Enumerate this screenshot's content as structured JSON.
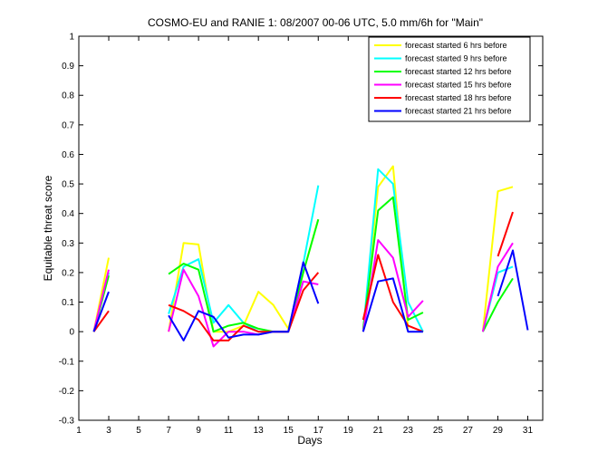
{
  "chart_data": {
    "type": "line",
    "title": "COSMO-EU and RANIE 1: 08/2007 00-06 UTC, 5.0 mm/6h for \"Main\"",
    "xlabel": "Days",
    "ylabel": "Equitable threat score",
    "xlim": [
      1,
      32
    ],
    "ylim": [
      -0.3,
      1
    ],
    "xticks": [
      1,
      3,
      5,
      7,
      9,
      11,
      13,
      15,
      17,
      19,
      21,
      23,
      25,
      27,
      29,
      31
    ],
    "yticks": [
      -0.3,
      -0.2,
      -0.1,
      0,
      0.1,
      0.2,
      0.3,
      0.4,
      0.5,
      0.6,
      0.7,
      0.8,
      0.9,
      1
    ],
    "xtick_labels": [
      "1",
      "3",
      "5",
      "7",
      "9",
      "11",
      "13",
      "15",
      "17",
      "19",
      "21",
      "23",
      "25",
      "27",
      "29",
      "31"
    ],
    "ytick_labels": [
      "-0.3",
      "-0.2",
      "-0.1",
      "0",
      "0.1",
      "0.2",
      "0.3",
      "0.4",
      "0.5",
      "0.6",
      "0.7",
      "0.8",
      "0.9",
      "1"
    ],
    "grid": false,
    "legend_position": "top-right",
    "series": [
      {
        "name": "forecast started 6 hrs before",
        "color": "#ffff00",
        "segments": [
          [
            [
              2,
              0
            ],
            [
              3,
              0.25
            ]
          ],
          [
            [
              7,
              0
            ],
            [
              8,
              0.3
            ],
            [
              9,
              0.295
            ],
            [
              10,
              0
            ],
            [
              11,
              0
            ],
            [
              12,
              0.02
            ],
            [
              13,
              0.135
            ],
            [
              14,
              0.09
            ],
            [
              15,
              0.01
            ],
            [
              16,
              0.2
            ],
            [
              17,
              0.38
            ]
          ],
          [
            [
              20,
              0
            ],
            [
              21,
              0.49
            ],
            [
              22,
              0.56
            ],
            [
              23,
              0.01
            ]
          ],
          [
            [
              28,
              0
            ],
            [
              29,
              0.475
            ],
            [
              30,
              0.49
            ]
          ]
        ]
      },
      {
        "name": "forecast started 9 hrs before",
        "color": "#00ffff",
        "segments": [
          [
            [
              2,
              0
            ],
            [
              3,
              0.2
            ]
          ],
          [
            [
              7,
              0.06
            ],
            [
              8,
              0.22
            ],
            [
              9,
              0.245
            ],
            [
              10,
              0.03
            ],
            [
              11,
              0.09
            ],
            [
              12,
              0.03
            ],
            [
              13,
              0
            ],
            [
              14,
              0
            ],
            [
              15,
              0
            ],
            [
              16,
              0.23
            ],
            [
              17,
              0.495
            ]
          ],
          [
            [
              20,
              0
            ],
            [
              21,
              0.55
            ],
            [
              22,
              0.5
            ],
            [
              23,
              0.1
            ],
            [
              24,
              0
            ]
          ],
          [
            [
              28,
              0
            ],
            [
              29,
              0.2
            ],
            [
              30,
              0.22
            ]
          ]
        ]
      },
      {
        "name": "forecast started 12 hrs before",
        "color": "#00ff00",
        "segments": [
          [
            [
              2,
              0
            ],
            [
              3,
              0.19
            ]
          ],
          [
            [
              7,
              0.195
            ],
            [
              8,
              0.23
            ],
            [
              9,
              0.21
            ],
            [
              10,
              0
            ],
            [
              11,
              0.02
            ],
            [
              12,
              0.03
            ],
            [
              13,
              0.01
            ],
            [
              14,
              0
            ],
            [
              15,
              0
            ],
            [
              16,
              0.2
            ],
            [
              17,
              0.38
            ]
          ],
          [
            [
              20,
              0.01
            ],
            [
              21,
              0.41
            ],
            [
              22,
              0.455
            ],
            [
              23,
              0.04
            ],
            [
              24,
              0.065
            ]
          ],
          [
            [
              28,
              0
            ],
            [
              29,
              0.1
            ],
            [
              30,
              0.18
            ]
          ]
        ]
      },
      {
        "name": "forecast started 15 hrs before",
        "color": "#ff00ff",
        "segments": [
          [
            [
              2,
              0
            ],
            [
              3,
              0.21
            ]
          ],
          [
            [
              7,
              0
            ],
            [
              8,
              0.21
            ],
            [
              9,
              0.12
            ],
            [
              10,
              -0.05
            ],
            [
              11,
              0
            ],
            [
              12,
              0
            ],
            [
              13,
              -0.01
            ],
            [
              14,
              0
            ],
            [
              15,
              0
            ],
            [
              16,
              0.17
            ],
            [
              17,
              0.16
            ]
          ],
          [
            [
              20,
              0
            ],
            [
              21,
              0.31
            ],
            [
              22,
              0.25
            ],
            [
              23,
              0.05
            ],
            [
              24,
              0.105
            ]
          ],
          [
            [
              28,
              0
            ],
            [
              29,
              0.22
            ],
            [
              30,
              0.3
            ]
          ]
        ]
      },
      {
        "name": "forecast started 18 hrs before",
        "color": "#ff0000",
        "segments": [
          [
            [
              2,
              0
            ],
            [
              3,
              0.07
            ]
          ],
          [
            [
              7,
              0.09
            ],
            [
              8,
              0.07
            ],
            [
              9,
              0.04
            ],
            [
              10,
              -0.03
            ],
            [
              11,
              -0.03
            ],
            [
              12,
              0.02
            ],
            [
              13,
              0
            ],
            [
              14,
              0
            ],
            [
              15,
              0
            ],
            [
              16,
              0.14
            ],
            [
              17,
              0.2
            ]
          ],
          [
            [
              20,
              0.04
            ],
            [
              21,
              0.26
            ],
            [
              22,
              0.1
            ],
            [
              23,
              0.02
            ],
            [
              24,
              0
            ]
          ],
          [
            [
              29,
              0.255
            ],
            [
              30,
              0.405
            ]
          ]
        ]
      },
      {
        "name": "forecast started 21 hrs before",
        "color": "#0000ff",
        "segments": [
          [
            [
              2,
              0
            ],
            [
              3,
              0.135
            ]
          ],
          [
            [
              7,
              0.055
            ],
            [
              8,
              -0.03
            ],
            [
              9,
              0.07
            ],
            [
              10,
              0.05
            ],
            [
              11,
              -0.02
            ],
            [
              12,
              -0.01
            ],
            [
              13,
              -0.01
            ],
            [
              14,
              0
            ],
            [
              15,
              0
            ],
            [
              16,
              0.235
            ],
            [
              17,
              0.095
            ]
          ],
          [
            [
              20,
              0
            ],
            [
              21,
              0.17
            ],
            [
              22,
              0.18
            ],
            [
              23,
              0
            ],
            [
              24,
              0
            ]
          ],
          [
            [
              29,
              0.12
            ],
            [
              30,
              0.275
            ],
            [
              31,
              0.005
            ]
          ]
        ]
      }
    ]
  }
}
